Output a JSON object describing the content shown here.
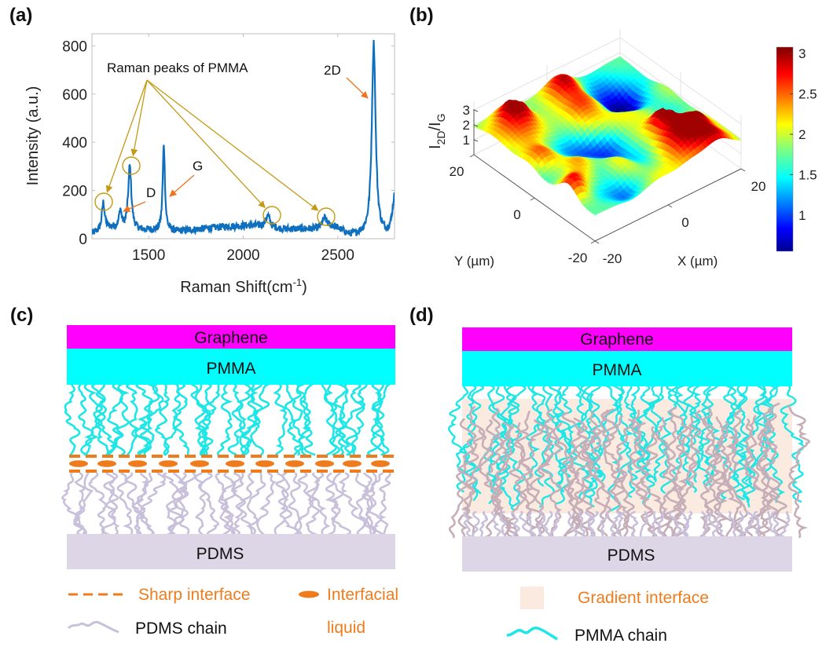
{
  "panels": {
    "a": {
      "label": "(a)"
    },
    "b": {
      "label": "(b)"
    },
    "c": {
      "label": "(c)"
    },
    "d": {
      "label": "(d)"
    }
  },
  "colors": {
    "spectrum": "#0f6fbf",
    "pmma_annot": "#c49a14",
    "peak_annot": "#ee7421",
    "graphene": "#ff00ff",
    "pmma": "#00ffff",
    "pdms": "#dcd6e6",
    "pdms_chain": "#c8c0da",
    "pmma_chain": "#1de6e6",
    "pdms_chain_mixed": "#c6aeb8",
    "interface": "#ee7c1c",
    "gradient": "#fbeadf",
    "axis": "#bdbdbd",
    "text": "#222222"
  },
  "chart_data": [
    {
      "panel": "a",
      "type": "line",
      "title": "",
      "xlabel": "Raman Shift(cm",
      "xlabel_sup": "-1",
      "xlabel_end": ")",
      "ylabel": "Intensity (a.u.)",
      "xlim": [
        1200,
        2800
      ],
      "ylim": [
        0,
        850
      ],
      "xticks": [
        1500,
        2000,
        2500
      ],
      "yticks": [
        0,
        200,
        400,
        600,
        800
      ],
      "grid": false,
      "peaks": [
        {
          "name": "PMMA-1",
          "x": 1260,
          "y": 150
        },
        {
          "name": "D",
          "x": 1350,
          "y": 115
        },
        {
          "name": "PMMA-2",
          "x": 1400,
          "y": 300
        },
        {
          "name": "G",
          "x": 1580,
          "y": 395
        },
        {
          "name": "PMMA-3",
          "x": 2130,
          "y": 95
        },
        {
          "name": "PMMA-4",
          "x": 2430,
          "y": 85
        },
        {
          "name": "2D",
          "x": 2690,
          "y": 810
        },
        {
          "name": "edge",
          "x": 2800,
          "y": 170
        }
      ],
      "baseline": [
        {
          "x": 1200,
          "y": 20
        },
        {
          "x": 1300,
          "y": 45
        },
        {
          "x": 1450,
          "y": 35
        },
        {
          "x": 1650,
          "y": 30
        },
        {
          "x": 1900,
          "y": 50
        },
        {
          "x": 2050,
          "y": 55
        },
        {
          "x": 2200,
          "y": 40
        },
        {
          "x": 2400,
          "y": 40
        },
        {
          "x": 2480,
          "y": 50
        },
        {
          "x": 2560,
          "y": 15
        },
        {
          "x": 2620,
          "y": 15
        },
        {
          "x": 2760,
          "y": 10
        }
      ],
      "annotations": {
        "pmma_text": "Raman peaks of PMMA",
        "d_text": "D",
        "g_text": "G",
        "twod_text": "2D"
      }
    },
    {
      "panel": "b",
      "type": "heatmap",
      "subtype": "3d-surface",
      "zlabel_main": "I",
      "zlabel_sub1": "2D",
      "zlabel_sep": "/I",
      "zlabel_sub2": "G",
      "xlabel": "X (µm)",
      "ylabel": "Y (µm)",
      "xlim": [
        -20,
        20
      ],
      "ylim": [
        -20,
        20
      ],
      "zlim": [
        0,
        3
      ],
      "xticks": [
        -20,
        0,
        20
      ],
      "yticks": [
        -20,
        0,
        20
      ],
      "zticks": [
        1,
        2,
        3
      ],
      "colormap": "jet",
      "clim": [
        0.55,
        3.08
      ],
      "colorbar_ticks": [
        "1",
        "1.5",
        "2",
        "2.5",
        "3"
      ],
      "z_range_observed": [
        0.6,
        3.0
      ]
    }
  ],
  "diagram_c": {
    "layers": {
      "graphene": "Graphene",
      "pmma": "PMMA",
      "pdms": "PDMS"
    },
    "legend": {
      "sharp": "Sharp interface",
      "liquid_1": "Interfacial",
      "liquid_2": "liquid",
      "pdms_chain": "PDMS chain"
    }
  },
  "diagram_d": {
    "layers": {
      "graphene": "Graphene",
      "pmma": "PMMA",
      "pdms": "PDMS"
    },
    "legend": {
      "gradient": "Gradient interface",
      "pmma_chain": "PMMA chain"
    }
  }
}
